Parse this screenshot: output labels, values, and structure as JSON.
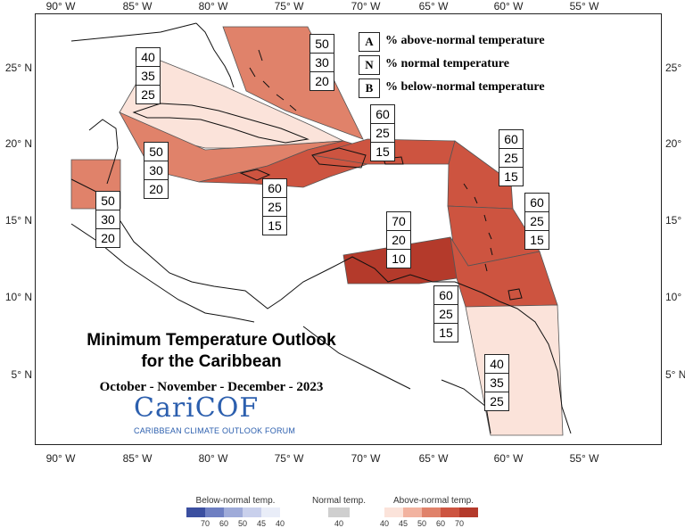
{
  "title": {
    "line1": "Minimum Temperature Outlook",
    "line2": "for the Caribbean",
    "period": "October - November - December - 2023"
  },
  "logo": {
    "name": "CariCOF",
    "tagline": "CARIBBEAN CLIMATE OUTLOOK FORUM"
  },
  "axes": {
    "longitude_labels": [
      "90° W",
      "85° W",
      "80° W",
      "75° W",
      "70° W",
      "65° W",
      "60° W",
      "55° W"
    ],
    "latitude_labels": [
      "25° N",
      "20° N",
      "15° N",
      "10° N",
      "5° N"
    ]
  },
  "key": [
    {
      "letter": "A",
      "text": "% above-normal temperature"
    },
    {
      "letter": "N",
      "text": "% normal temperature"
    },
    {
      "letter": "B",
      "text": "% below-normal temperature"
    }
  ],
  "regions": [
    {
      "name": "bahamas",
      "above": "50",
      "normal": "30",
      "below": "20",
      "color": "#e0826a"
    },
    {
      "name": "cuba",
      "above": "40",
      "normal": "35",
      "below": "25",
      "color": "#fbe3da"
    },
    {
      "name": "cayman-jamaica-sea",
      "above": "50",
      "normal": "30",
      "below": "20",
      "color": "#e0826a"
    },
    {
      "name": "belize",
      "above": "50",
      "normal": "30",
      "below": "20",
      "color": "#e0826a"
    },
    {
      "name": "jamaica-hispaniola",
      "above": "60",
      "normal": "25",
      "below": "15",
      "color": "#cd5440"
    },
    {
      "name": "hispaniola-pr",
      "above": "60",
      "normal": "25",
      "below": "15",
      "color": "#cd5440"
    },
    {
      "name": "lesser-antilles-north",
      "above": "60",
      "normal": "25",
      "below": "15",
      "color": "#cd5440"
    },
    {
      "name": "lesser-antilles-south",
      "above": "60",
      "normal": "25",
      "below": "15",
      "color": "#cd5440"
    },
    {
      "name": "aruba-curacao",
      "above": "70",
      "normal": "20",
      "below": "10",
      "color": "#b43a2b"
    },
    {
      "name": "trinidad-venezuela",
      "above": "60",
      "normal": "25",
      "below": "15",
      "color": "#cd5440"
    },
    {
      "name": "guianas",
      "above": "40",
      "normal": "35",
      "below": "25",
      "color": "#fbe3da"
    }
  ],
  "legend": {
    "below_title": "Below-normal temp.",
    "normal_title": "Normal temp.",
    "above_title": "Above-normal temp.",
    "below_values": [
      "70",
      "60",
      "50",
      "45",
      "40"
    ],
    "normal_values": [
      "40"
    ],
    "above_values": [
      "40",
      "45",
      "50",
      "60",
      "70"
    ],
    "below_colors": [
      "#3b4fa0",
      "#6e7fc2",
      "#9fabd9",
      "#c9d0ec",
      "#e9edf8"
    ],
    "normal_color": "#cfcfcf",
    "above_colors": [
      "#fbe3da",
      "#f2b3a0",
      "#e0826a",
      "#cd5440",
      "#b43a2b"
    ]
  }
}
